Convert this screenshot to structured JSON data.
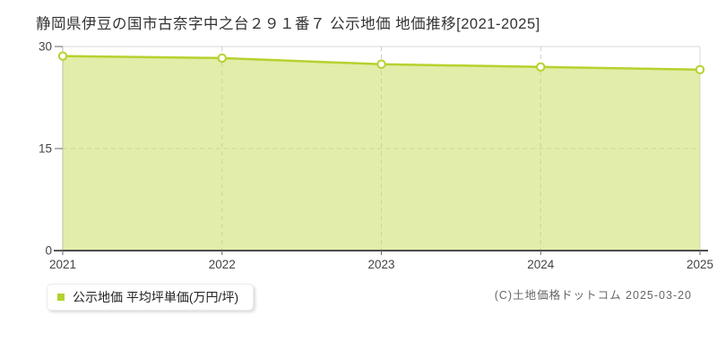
{
  "title": "静岡県伊豆の国市古奈字中之台２９１番７ 公示地価 地価推移[2021-2025]",
  "legend": {
    "label": "公示地価 平均坪単価(万円/坪)",
    "marker_color": "#b2d22d"
  },
  "footer": {
    "copyright": "(C)土地価格ドットコム 2025-03-20"
  },
  "chart_data": {
    "type": "area",
    "title": "静岡県伊豆の国市古奈字中之台２９１番７ 公示地価 地価推移[2021-2025]",
    "x": [
      "2021",
      "2022",
      "2023",
      "2024",
      "2025"
    ],
    "series": [
      {
        "name": "公示地価 平均坪単価(万円/坪)",
        "values": [
          28.6,
          28.3,
          27.4,
          27.0,
          26.6
        ]
      }
    ],
    "xlabel": "",
    "ylabel": "",
    "ylim": [
      0,
      30
    ],
    "yticks": [
      0,
      15,
      30
    ],
    "grid": true,
    "legend_position": "bottom-left",
    "colors": {
      "line": "#b5d22d",
      "fill": "rgba(201,222,99,0.55)",
      "point_fill": "#ffffff",
      "grid": "#cccccc",
      "grid_solid": "#d9d9d9",
      "axis": "#4d4d4d",
      "tick_text": "#444444"
    }
  }
}
